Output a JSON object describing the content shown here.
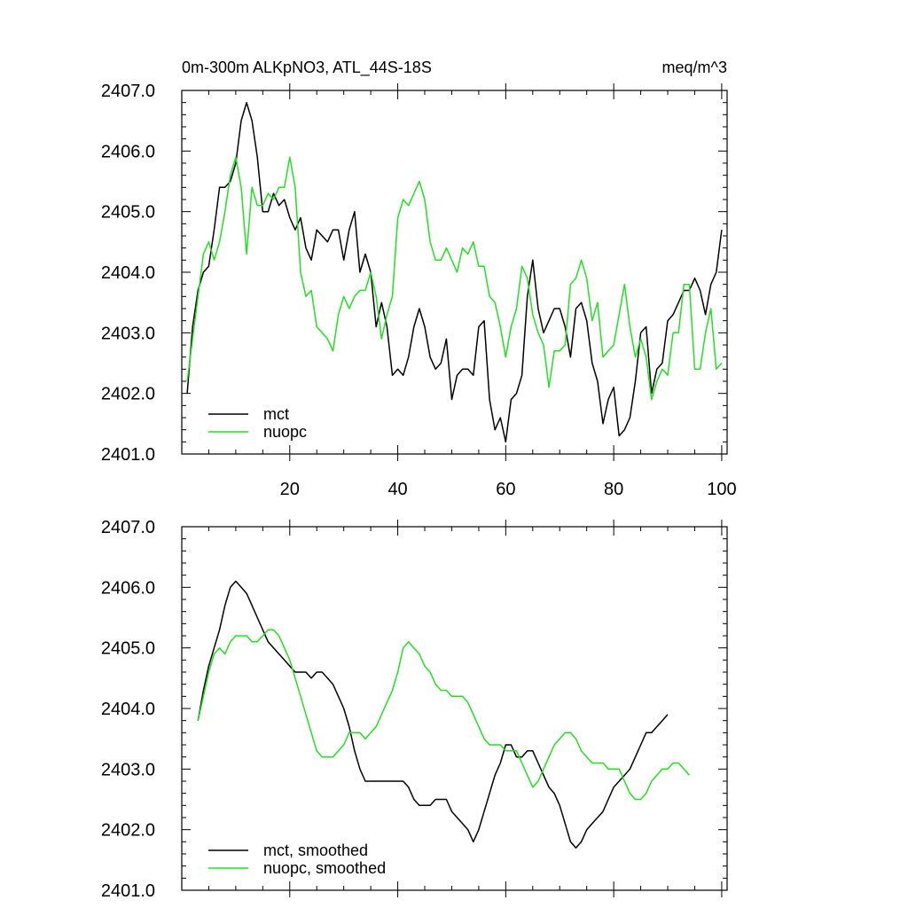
{
  "figure": {
    "title_left": "0m-300m ALKpNO3, ATL_44S-18S",
    "title_right": "meq/m^3"
  },
  "colors": {
    "mct": "#000000",
    "nuopc": "#22e022"
  },
  "chart_data": [
    {
      "type": "line",
      "title": "0m-300m ALKpNO3, ATL_44S-18S",
      "units": "meq/m^3",
      "xlim": [
        0,
        101
      ],
      "ylim": [
        2401.0,
        2407.0
      ],
      "x_ticks": [
        20,
        40,
        60,
        80,
        100
      ],
      "x_tick_labels": [
        "20",
        "40",
        "60",
        "80",
        "100"
      ],
      "y_ticks": [
        2401,
        2402,
        2403,
        2404,
        2405,
        2406,
        2407
      ],
      "y_tick_labels": [
        "2401.0",
        "2402.0",
        "2403.0",
        "2404.0",
        "2405.0",
        "2406.0",
        "2407.0"
      ],
      "legend_position": "bottom-left",
      "x_start": 1,
      "series": [
        {
          "name": "mct",
          "color": "#000000",
          "values": [
            2402.0,
            2403.1,
            2403.7,
            2404.0,
            2404.1,
            2404.7,
            2405.4,
            2405.4,
            2405.5,
            2405.8,
            2406.5,
            2406.8,
            2406.5,
            2405.9,
            2405.0,
            2405.0,
            2405.3,
            2405.1,
            2405.2,
            2404.9,
            2404.7,
            2404.9,
            2404.4,
            2404.2,
            2404.7,
            2404.6,
            2404.5,
            2404.7,
            2404.7,
            2404.2,
            2404.7,
            2405.0,
            2404.0,
            2404.3,
            2404.0,
            2403.1,
            2403.5,
            2403.1,
            2402.3,
            2402.4,
            2402.3,
            2402.6,
            2403.1,
            2403.4,
            2403.1,
            2402.6,
            2402.4,
            2402.5,
            2402.9,
            2401.9,
            2402.3,
            2402.4,
            2402.4,
            2402.3,
            2403.1,
            2403.2,
            2401.9,
            2401.4,
            2401.6,
            2401.2,
            2401.9,
            2402.0,
            2402.3,
            2403.6,
            2404.2,
            2403.4,
            2403.0,
            2403.2,
            2403.4,
            2403.4,
            2403.1,
            2402.6,
            2403.4,
            2403.5,
            2403.2,
            2402.5,
            2402.2,
            2401.5,
            2401.9,
            2402.1,
            2401.3,
            2401.4,
            2401.6,
            2402.2,
            2403.0,
            2403.1,
            2402.0,
            2402.4,
            2402.5,
            2403.2,
            2403.3,
            2403.5,
            2403.7,
            2403.7,
            2403.9,
            2403.7,
            2403.3,
            2403.8,
            2404.0,
            2404.7
          ]
        },
        {
          "name": "nuopc",
          "color": "#22e022",
          "values": [
            2402.2,
            2402.9,
            2403.6,
            2404.3,
            2404.5,
            2404.2,
            2404.5,
            2405.0,
            2405.6,
            2405.9,
            2405.4,
            2404.3,
            2405.4,
            2405.1,
            2405.1,
            2405.3,
            2405.2,
            2405.4,
            2405.4,
            2405.9,
            2405.4,
            2404.0,
            2403.6,
            2403.7,
            2403.1,
            2403.0,
            2402.9,
            2402.7,
            2403.3,
            2403.6,
            2403.4,
            2403.6,
            2403.7,
            2403.7,
            2404.0,
            2403.6,
            2402.9,
            2403.3,
            2403.6,
            2404.9,
            2405.2,
            2405.1,
            2405.3,
            2405.5,
            2405.2,
            2404.5,
            2404.2,
            2404.2,
            2404.4,
            2404.2,
            2404.0,
            2404.4,
            2404.3,
            2404.5,
            2404.1,
            2404.1,
            2403.6,
            2403.5,
            2403.1,
            2402.6,
            2403.1,
            2403.4,
            2404.1,
            2403.9,
            2403.3,
            2403.0,
            2402.8,
            2402.1,
            2402.7,
            2402.7,
            2402.8,
            2403.8,
            2403.9,
            2404.2,
            2403.9,
            2403.2,
            2403.5,
            2402.6,
            2402.7,
            2402.8,
            2403.3,
            2403.8,
            2403.1,
            2402.6,
            2402.9,
            2402.6,
            2401.9,
            2402.2,
            2402.4,
            2402.3,
            2403.0,
            2403.0,
            2403.8,
            2403.8,
            2402.4,
            2402.4,
            2403.0,
            2403.4,
            2402.4,
            2402.5
          ]
        }
      ]
    },
    {
      "type": "line",
      "title": "",
      "xlim": [
        0,
        101
      ],
      "ylim": [
        2401.0,
        2407.0
      ],
      "x_ticks": [
        20,
        40,
        60,
        80,
        100
      ],
      "x_tick_labels": [],
      "y_ticks": [
        2401,
        2402,
        2403,
        2404,
        2405,
        2406,
        2407
      ],
      "y_tick_labels": [
        "2401.0",
        "2402.0",
        "2403.0",
        "2404.0",
        "2405.0",
        "2406.0",
        "2407.0"
      ],
      "legend_position": "bottom-left",
      "x_start": 3,
      "series": [
        {
          "name": "mct, smoothed",
          "color": "#000000",
          "values": [
            2403.8,
            2404.3,
            2404.7,
            2405.0,
            2405.3,
            2405.7,
            2406.0,
            2406.1,
            2406.0,
            2405.9,
            2405.7,
            2405.5,
            2405.3,
            2405.1,
            2405.0,
            2404.9,
            2404.8,
            2404.7,
            2404.6,
            2404.6,
            2404.6,
            2404.5,
            2404.6,
            2404.6,
            2404.5,
            2404.4,
            2404.2,
            2404.0,
            2403.7,
            2403.3,
            2403.0,
            2402.8,
            2402.8,
            2402.8,
            2402.8,
            2402.8,
            2402.8,
            2402.8,
            2402.8,
            2402.7,
            2402.5,
            2402.4,
            2402.4,
            2402.4,
            2402.5,
            2402.5,
            2402.5,
            2402.3,
            2402.2,
            2402.1,
            2402.0,
            2401.8,
            2402.0,
            2402.3,
            2402.6,
            2402.9,
            2403.1,
            2403.4,
            2403.4,
            2403.2,
            2403.2,
            2403.3,
            2403.3,
            2403.1,
            2402.9,
            2402.7,
            2402.6,
            2402.4,
            2402.1,
            2401.8,
            2401.7,
            2401.8,
            2402.0,
            2402.1,
            2402.2,
            2402.3,
            2402.5,
            2402.7,
            2402.8,
            2402.9,
            2403.0,
            2403.2,
            2403.4,
            2403.6,
            2403.6,
            2403.7,
            2403.8,
            2403.9
          ]
        },
        {
          "name": "nuopc, smoothed",
          "color": "#22e022",
          "values": [
            2403.8,
            2404.2,
            2404.6,
            2404.9,
            2405.0,
            2404.9,
            2405.1,
            2405.2,
            2405.2,
            2405.2,
            2405.1,
            2405.1,
            2405.2,
            2405.3,
            2405.3,
            2405.2,
            2405.0,
            2404.8,
            2404.5,
            2404.2,
            2403.9,
            2403.6,
            2403.3,
            2403.2,
            2403.2,
            2403.2,
            2403.3,
            2403.4,
            2403.6,
            2403.6,
            2403.6,
            2403.5,
            2403.6,
            2403.7,
            2403.9,
            2404.1,
            2404.3,
            2404.6,
            2405.0,
            2405.1,
            2405.0,
            2404.9,
            2404.7,
            2404.6,
            2404.4,
            2404.3,
            2404.3,
            2404.2,
            2404.2,
            2404.2,
            2404.1,
            2403.9,
            2403.7,
            2403.5,
            2403.4,
            2403.4,
            2403.4,
            2403.3,
            2403.3,
            2403.3,
            2403.1,
            2402.9,
            2402.7,
            2402.8,
            2403.0,
            2403.2,
            2403.4,
            2403.5,
            2403.6,
            2403.6,
            2403.5,
            2403.3,
            2403.2,
            2403.1,
            2403.1,
            2403.1,
            2403.0,
            2403.0,
            2403.0,
            2402.8,
            2402.6,
            2402.5,
            2402.5,
            2402.6,
            2402.8,
            2402.9,
            2403.0,
            2403.0,
            2403.1,
            2403.1,
            2403.0,
            2402.9
          ]
        }
      ]
    }
  ]
}
